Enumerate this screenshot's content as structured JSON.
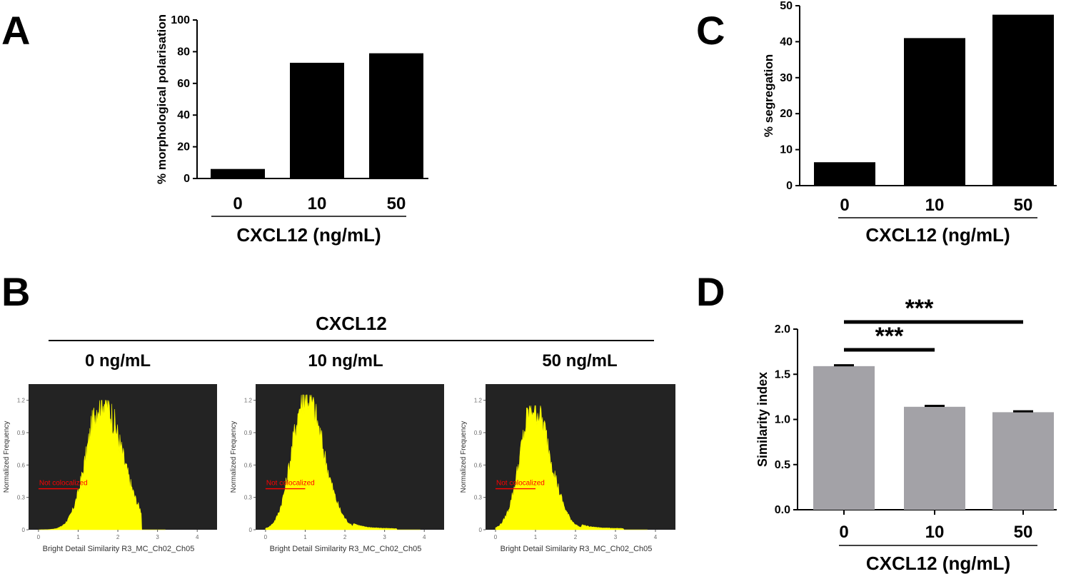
{
  "colors": {
    "bar_black": "#000000",
    "bar_gray": "#a3a2a7",
    "histogram_bg": "#232323",
    "histogram_fill": "#ffff00",
    "not_colocalized": "#ff0000",
    "tick_text_hist": "#6b6b6b"
  },
  "panels": {
    "A": {
      "letter": "A"
    },
    "B": {
      "letter": "B",
      "header": "CXCL12"
    },
    "C": {
      "letter": "C"
    },
    "D": {
      "letter": "D"
    }
  },
  "chart_data": [
    {
      "id": "A",
      "type": "bar",
      "categories": [
        "0",
        "10",
        "50"
      ],
      "values": [
        6,
        73,
        79
      ],
      "ylabel": "% morphological polarisation",
      "xlabel": "CXCL12 (ng/mL)",
      "ylim": [
        0,
        100
      ],
      "yticks": [
        "0",
        "20",
        "40",
        "60",
        "80",
        "100"
      ]
    },
    {
      "id": "C",
      "type": "bar",
      "categories": [
        "0",
        "10",
        "50"
      ],
      "values": [
        6.5,
        41,
        47.5
      ],
      "ylabel": "% segregation",
      "xlabel": "CXCL12 (ng/mL)",
      "ylim": [
        0,
        50
      ],
      "yticks": [
        "0",
        "10",
        "20",
        "30",
        "40",
        "50"
      ]
    },
    {
      "id": "D",
      "type": "bar",
      "categories": [
        "0",
        "10",
        "50"
      ],
      "values": [
        1.59,
        1.14,
        1.08
      ],
      "errors": [
        0.01,
        0.01,
        0.01
      ],
      "ylabel": "Similarity index",
      "xlabel": "CXCL12 (ng/mL)",
      "ylim": [
        0,
        2
      ],
      "yticks": [
        "0.0",
        "0.5",
        "1.0",
        "1.5",
        "2.0"
      ],
      "significance": [
        {
          "from": "0",
          "to": "10",
          "label": "***"
        },
        {
          "from": "0",
          "to": "50",
          "label": "***"
        }
      ]
    },
    {
      "id": "B",
      "type": "area",
      "title": "CXCL12",
      "xlabel": "Bright Detail Similarity R3_MC_Ch02_Ch05",
      "ylabel": "Normalized Frequency",
      "xlim": [
        -0.25,
        4.5
      ],
      "ylim": [
        0,
        1.35
      ],
      "xticks": [
        "0",
        "1",
        "2",
        "3",
        "4"
      ],
      "yticks": [
        "0",
        "0.3",
        "0.6",
        "0.9",
        "1.2"
      ],
      "gate": {
        "label": "Not colocalized",
        "range": [
          0,
          1
        ],
        "y": 0.38
      },
      "series": [
        {
          "name": "0 ng/mL",
          "peak_x": 1.6,
          "peak_y": 1.2,
          "left_sd": 0.38,
          "right_sd": 0.5,
          "tail_to": 2.6
        },
        {
          "name": "10 ng/mL",
          "peak_x": 1.0,
          "peak_y": 1.25,
          "left_sd": 0.33,
          "right_sd": 0.45,
          "tail_to": 3.3
        },
        {
          "name": "50 ng/mL",
          "peak_x": 0.95,
          "peak_y": 1.15,
          "left_sd": 0.33,
          "right_sd": 0.42,
          "tail_to": 3.2
        }
      ]
    }
  ]
}
